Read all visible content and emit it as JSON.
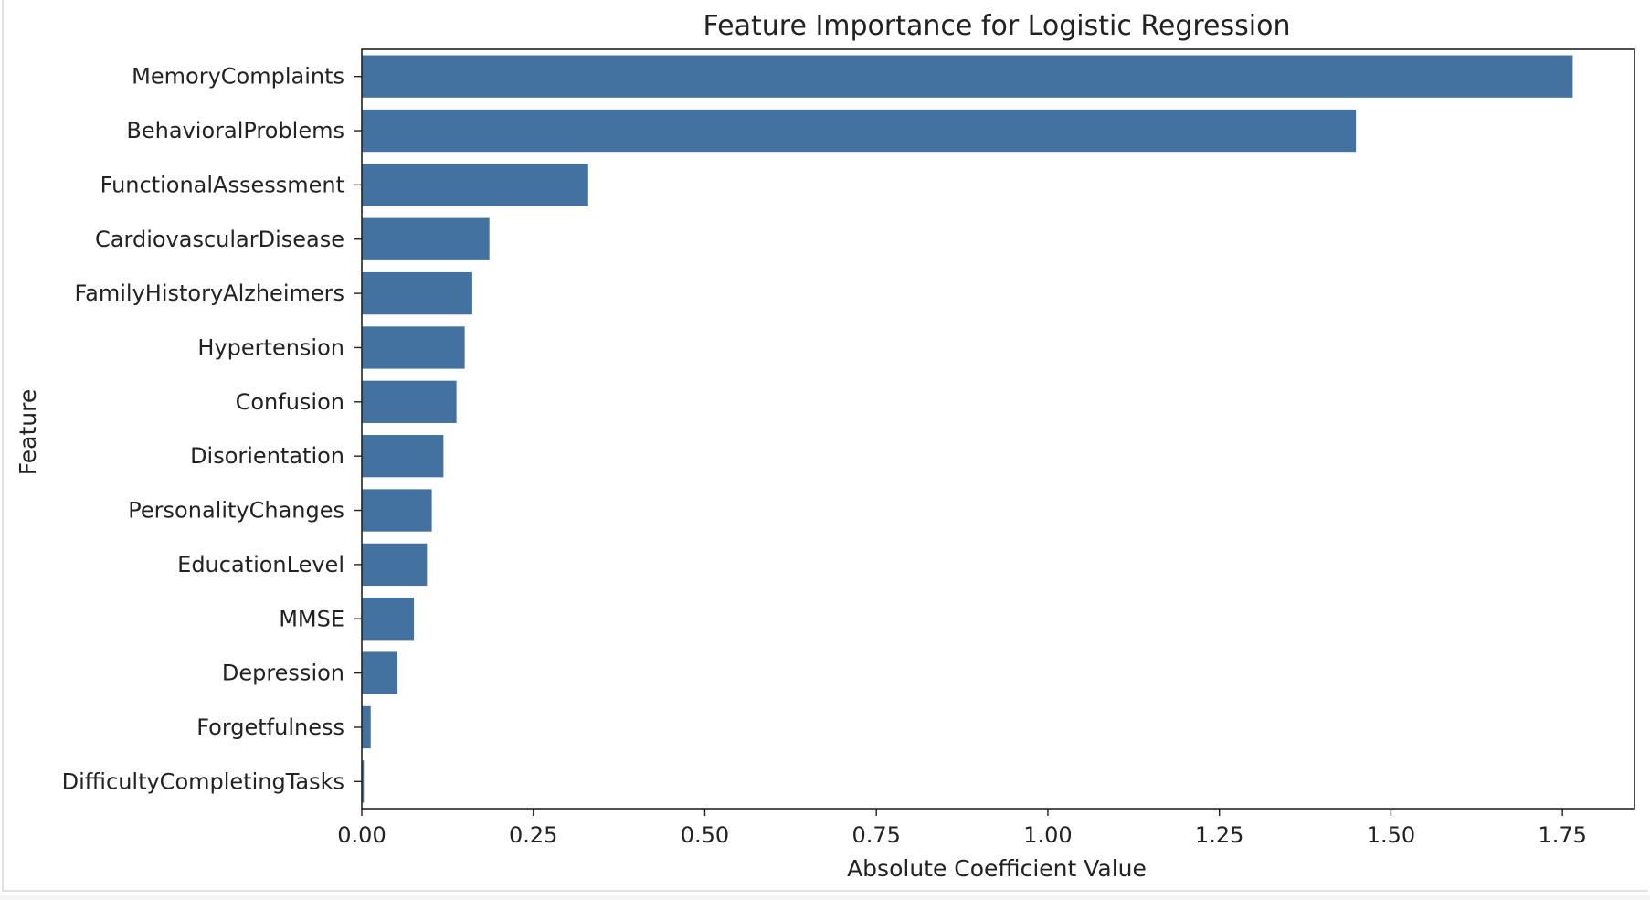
{
  "chart_data": {
    "type": "bar",
    "orientation": "horizontal",
    "title": "Feature Importance for Logistic Regression",
    "xlabel": "Absolute Coefficient Value",
    "ylabel": "Feature",
    "xlim": [
      0,
      1.855
    ],
    "xticks": [
      "0.00",
      "0.25",
      "0.50",
      "0.75",
      "1.00",
      "1.25",
      "1.50",
      "1.75"
    ],
    "grid": false,
    "bar_color": "#4472a0",
    "categories": [
      "MemoryComplaints",
      "BehavioralProblems",
      "FunctionalAssessment",
      "CardiovascularDisease",
      "FamilyHistoryAlzheimers",
      "Hypertension",
      "Confusion",
      "Disorientation",
      "PersonalityChanges",
      "EducationLevel",
      "MMSE",
      "Depression",
      "Forgetfulness",
      "DifficultyCompletingTasks"
    ],
    "values": [
      1.765,
      1.449,
      0.33,
      0.186,
      0.161,
      0.15,
      0.138,
      0.119,
      0.102,
      0.095,
      0.076,
      0.052,
      0.013,
      0.003
    ]
  }
}
